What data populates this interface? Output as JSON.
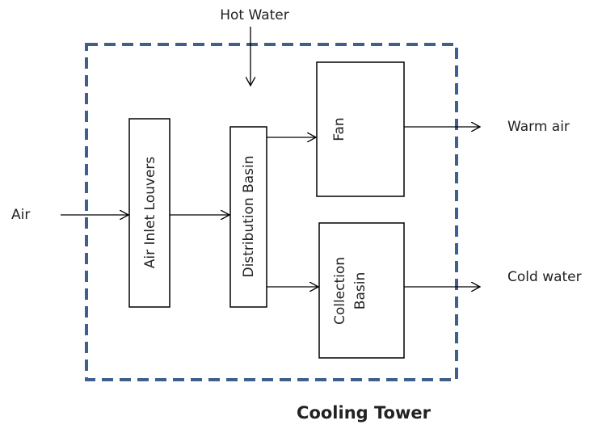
{
  "title": "Cooling Tower",
  "nodes": [
    {
      "label": "Air Inlet Louvers"
    },
    {
      "label": "Distribution Basin"
    },
    {
      "label": "Fan"
    },
    {
      "label_lines": [
        "Collection",
        "Basin"
      ]
    }
  ],
  "flows": {
    "hot_water": "Hot Water",
    "air": "Air",
    "warm_air": "Warm air",
    "cold_water": "Cold water"
  }
}
